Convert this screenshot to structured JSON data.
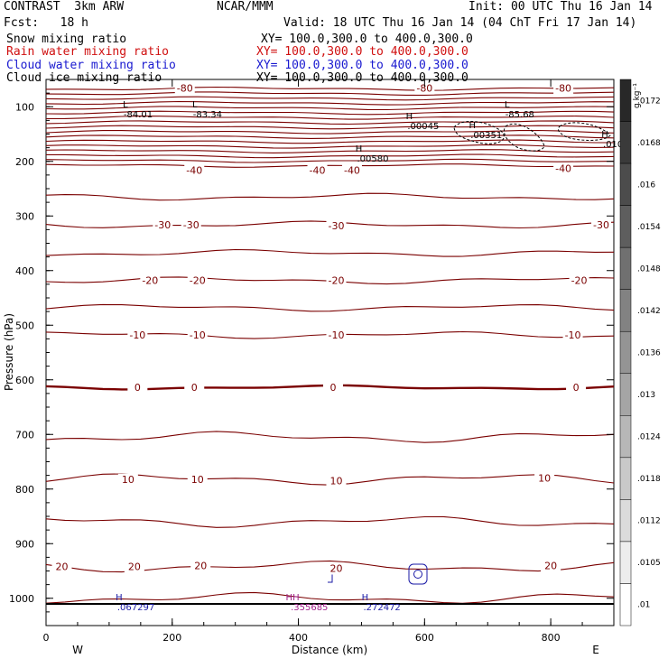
{
  "header": {
    "title": "CONTRAST  3km ARW",
    "org": "NCAR/MMM",
    "init": "Init: 00 UTC Thu 16 Jan 14",
    "fcst": "Fcst:   18 h",
    "valid": "Valid: 18 UTC Thu 16 Jan 14 (04 ChT Fri 17 Jan 14)"
  },
  "legend": [
    {
      "label": "Snow mixing ratio",
      "xy": "XY= 100.0,300.0 to 400.0,300.0",
      "color": "#000000"
    },
    {
      "label": "Rain water mixing ratio",
      "xy": "XY= 100.0,300.0 to 400.0,300.0",
      "color": "#d01010"
    },
    {
      "label": "Cloud water mixing ratio",
      "xy": "XY= 100.0,300.0 to 400.0,300.0",
      "color": "#1a1ad0"
    },
    {
      "label": "Cloud ice mixing ratio",
      "xy": "XY= 100.0,300.0 to 400.0,300.0",
      "color": "#000000"
    }
  ],
  "colors": {
    "temp": "#7a0000",
    "cloudwater": "#1a1aa6",
    "rain": "#a0208a",
    "axis": "#000000"
  },
  "chart_data": {
    "type": "contour cross-section",
    "xlabel": "Distance (km)",
    "ylabel": "Pressure (hPa)",
    "xlim": [
      0,
      900
    ],
    "ylim": [
      1050,
      50
    ],
    "x_ticks": [
      0,
      200,
      400,
      600,
      800
    ],
    "y_ticks": [
      100,
      200,
      300,
      400,
      500,
      600,
      700,
      800,
      900,
      1000
    ],
    "x_end_labels": {
      "left": "W",
      "right": "E"
    },
    "colorbar": {
      "unit": "g kg⁻¹",
      "ticks": [
        ".0172",
        ".0168",
        ".016",
        ".0154",
        ".0148",
        ".0142",
        ".0136",
        ".013",
        ".0124",
        ".0118",
        ".0112",
        ".0105",
        ".01"
      ]
    },
    "temperature_contour_labels": [
      {
        "text": "-80",
        "x": 220,
        "p": 66
      },
      {
        "text": "-80",
        "x": 600,
        "p": 66
      },
      {
        "text": "-80",
        "x": 820,
        "p": 66
      },
      {
        "text": "-40",
        "x": 235,
        "p": 216
      },
      {
        "text": "-40",
        "x": 430,
        "p": 216
      },
      {
        "text": "-40",
        "x": 485,
        "p": 216
      },
      {
        "text": "-40",
        "x": 820,
        "p": 213
      },
      {
        "text": "-30",
        "x": 185,
        "p": 316
      },
      {
        "text": "-30",
        "x": 230,
        "p": 316
      },
      {
        "text": "-30",
        "x": 460,
        "p": 318
      },
      {
        "text": "-30",
        "x": 880,
        "p": 316
      },
      {
        "text": "-20",
        "x": 165,
        "p": 418
      },
      {
        "text": "-20",
        "x": 240,
        "p": 418
      },
      {
        "text": "-20",
        "x": 460,
        "p": 418
      },
      {
        "text": "-20",
        "x": 845,
        "p": 418
      },
      {
        "text": "-10",
        "x": 145,
        "p": 518
      },
      {
        "text": "-10",
        "x": 240,
        "p": 518
      },
      {
        "text": "-10",
        "x": 460,
        "p": 518
      },
      {
        "text": "-10",
        "x": 835,
        "p": 518
      },
      {
        "text": "0",
        "x": 145,
        "p": 614
      },
      {
        "text": "0",
        "x": 235,
        "p": 614
      },
      {
        "text": "0",
        "x": 455,
        "p": 614
      },
      {
        "text": "0",
        "x": 840,
        "p": 614
      },
      {
        "text": "10",
        "x": 130,
        "p": 782
      },
      {
        "text": "10",
        "x": 240,
        "p": 782
      },
      {
        "text": "10",
        "x": 460,
        "p": 785
      },
      {
        "text": "10",
        "x": 790,
        "p": 780
      },
      {
        "text": "20",
        "x": 25,
        "p": 942
      },
      {
        "text": "20",
        "x": 140,
        "p": 942
      },
      {
        "text": "20",
        "x": 245,
        "p": 940
      },
      {
        "text": "20",
        "x": 460,
        "p": 945
      },
      {
        "text": "20",
        "x": 800,
        "p": 940
      }
    ],
    "extrema": [
      {
        "mark": "L",
        "value": "-84.01",
        "x": 120,
        "p": 108
      },
      {
        "mark": "L",
        "value": "-83.34",
        "x": 230,
        "p": 108
      },
      {
        "mark": "L",
        "value": "-85.68",
        "x": 725,
        "p": 108
      },
      {
        "mark": "H",
        "value": ".00045",
        "x": 570,
        "p": 129
      },
      {
        "mark": "H",
        "value": ".00351",
        "x": 670,
        "p": 146
      },
      {
        "mark": "H",
        "value": ".00580",
        "x": 490,
        "p": 189
      },
      {
        "mark": "H",
        "value": ".010",
        "x": 880,
        "p": 162
      },
      {
        "mark": "H",
        "value": ".067297",
        "x": 110,
        "p": 1010
      },
      {
        "mark": "H",
        "value": ".272472",
        "x": 500,
        "p": 1010
      },
      {
        "mark": "HH",
        "value": ".355685",
        "x": 385,
        "p": 1010
      }
    ]
  }
}
